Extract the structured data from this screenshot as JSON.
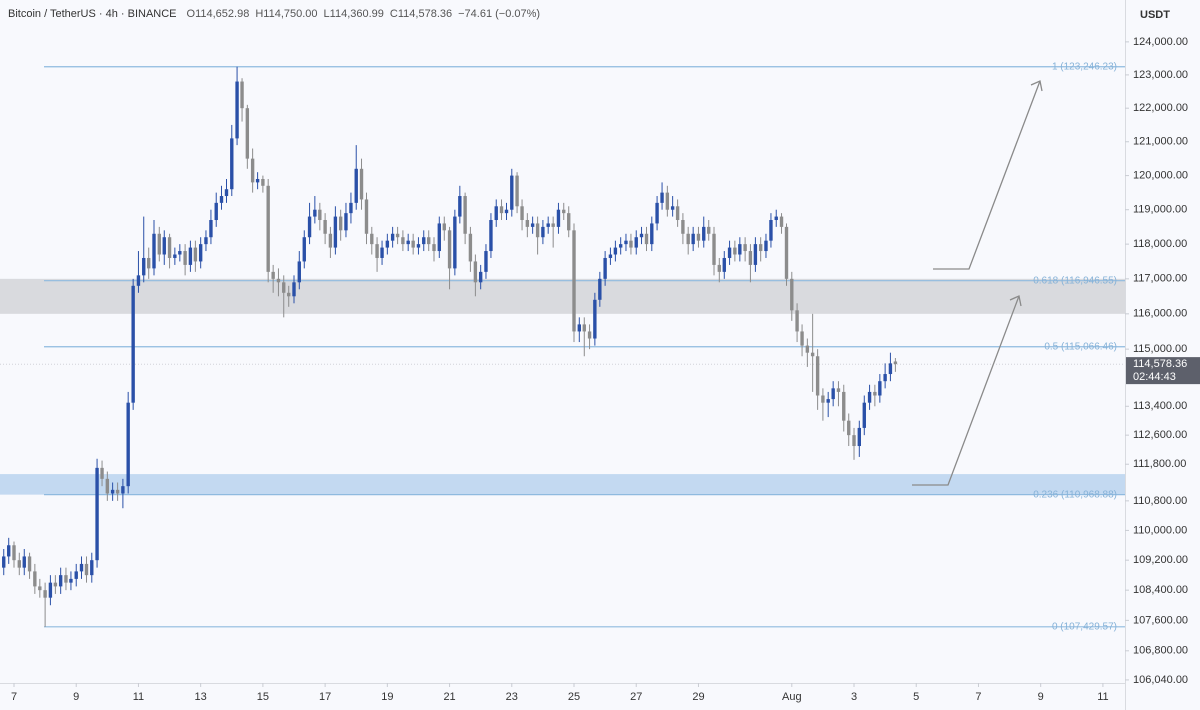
{
  "header": {
    "symbol": "Bitcoin / TetherUS · 4h · BINANCE",
    "ohlc": [
      {
        "key": "O",
        "value": "114,652.98"
      },
      {
        "key": "H",
        "value": "114,750.00"
      },
      {
        "key": "L",
        "value": "114,360.99"
      },
      {
        "key": "C",
        "value": "114,578.36"
      }
    ],
    "change": "−74.61 (−0.07%)"
  },
  "chart_data": {
    "type": "candlestick",
    "y_unit": "USDT",
    "log": true,
    "grid": false,
    "up_color": "#2a50a8",
    "down_color": "#8c8c8c",
    "xlim": [
      6.55,
      42.71
    ],
    "ylim": [
      105960,
      125280
    ],
    "xticks": [
      7,
      9,
      11,
      13,
      15,
      17,
      19,
      21,
      23,
      25,
      27,
      29,
      {
        "value": 32,
        "label": "Aug"
      },
      {
        "value": 34,
        "label": "3"
      },
      {
        "value": 36,
        "label": "5"
      },
      {
        "value": 38,
        "label": "7"
      },
      {
        "value": 40,
        "label": "9"
      },
      {
        "value": 42,
        "label": "11"
      }
    ],
    "yticks": [
      {
        "value": 124000,
        "label": "124,000.00"
      },
      {
        "value": 123000,
        "label": "123,000.00"
      },
      {
        "value": 122000,
        "label": "122,000.00"
      },
      {
        "value": 121000,
        "label": "121,000.00"
      },
      {
        "value": 120000,
        "label": "120,000.00"
      },
      {
        "value": 119000,
        "label": "119,000.00"
      },
      {
        "value": 118000,
        "label": "118,000.00"
      },
      {
        "value": 117000,
        "label": "117,000.00"
      },
      {
        "value": 116000,
        "label": "116,000.00"
      },
      {
        "value": 115000,
        "label": "115,000.00"
      },
      {
        "value": 113400,
        "label": "113,400.00"
      },
      {
        "value": 112600,
        "label": "112,600.00"
      },
      {
        "value": 111800,
        "label": "111,800.00"
      },
      {
        "value": 110800,
        "label": "110,800.00"
      },
      {
        "value": 110000,
        "label": "110,000.00"
      },
      {
        "value": 109200,
        "label": "109,200.00"
      },
      {
        "value": 108400,
        "label": "108,400.00"
      },
      {
        "value": 107600,
        "label": "107,600.00"
      },
      {
        "value": 106800,
        "label": "106,800.00"
      },
      {
        "value": 106040,
        "label": "106,040.00"
      }
    ],
    "last_price": {
      "value": 114578.36,
      "label": "114,578.36",
      "countdown": "02:44:43",
      "color": "#5d606b"
    },
    "zones": [
      {
        "low": 116000,
        "high": 117000,
        "color": "#d5d6da"
      },
      {
        "low": 110969,
        "high": 111530,
        "color": "#bcd5ef"
      }
    ],
    "fib_color": "#8fbadf",
    "fib_levels": [
      {
        "value": 123246.23,
        "label": "1 (123,246.23)"
      },
      {
        "value": 116946.55,
        "label": "0.618 (116,946.55)"
      },
      {
        "value": 115066.46,
        "label": "0.5 (115,066.46)"
      },
      {
        "value": 110968.88,
        "label": "0.236 (110,968.88)"
      },
      {
        "value": 107429.57,
        "label": "0 (107,429.57)"
      }
    ],
    "x": [
      6.67,
      6.83,
      7,
      7.17,
      7.33,
      7.5,
      7.67,
      7.83,
      8,
      8.17,
      8.33,
      8.5,
      8.67,
      8.83,
      9,
      9.17,
      9.33,
      9.5,
      9.67,
      9.83,
      10,
      10.17,
      10.33,
      10.5,
      10.67,
      10.83,
      11,
      11.17,
      11.33,
      11.5,
      11.67,
      11.83,
      12,
      12.17,
      12.33,
      12.5,
      12.67,
      12.83,
      13,
      13.17,
      13.33,
      13.5,
      13.67,
      13.83,
      14,
      14.17,
      14.33,
      14.5,
      14.67,
      14.83,
      15,
      15.17,
      15.33,
      15.5,
      15.67,
      15.83,
      16,
      16.17,
      16.33,
      16.5,
      16.67,
      16.83,
      17,
      17.17,
      17.33,
      17.5,
      17.67,
      17.83,
      18,
      18.17,
      18.33,
      18.5,
      18.67,
      18.83,
      19,
      19.17,
      19.33,
      19.5,
      19.67,
      19.83,
      20,
      20.17,
      20.33,
      20.5,
      20.67,
      20.83,
      21,
      21.17,
      21.33,
      21.5,
      21.67,
      21.83,
      22,
      22.17,
      22.33,
      22.5,
      22.67,
      22.83,
      23,
      23.17,
      23.33,
      23.5,
      23.67,
      23.83,
      24,
      24.17,
      24.33,
      24.5,
      24.67,
      24.83,
      25,
      25.17,
      25.33,
      25.5,
      25.67,
      25.83,
      26,
      26.17,
      26.33,
      26.5,
      26.67,
      26.83,
      27,
      27.17,
      27.33,
      27.5,
      27.67,
      27.83,
      28,
      28.17,
      28.33,
      28.5,
      28.67,
      28.83,
      29,
      29.17,
      29.33,
      29.5,
      29.67,
      29.83,
      30,
      30.17,
      30.33,
      30.5,
      30.67,
      30.83,
      31,
      31.17,
      31.33,
      31.5,
      31.67,
      31.83,
      32,
      32.17,
      32.33,
      32.5,
      32.67,
      32.83,
      33,
      33.17,
      33.33,
      33.5,
      33.67,
      33.83,
      34,
      34.17,
      34.33,
      34.5,
      34.67,
      34.83,
      35,
      35.17,
      35.33
    ],
    "open": [
      109000,
      109300,
      109600,
      109200,
      109000,
      109300,
      108900,
      108500,
      108400,
      108200,
      108600,
      108500,
      108800,
      108600,
      108700,
      108900,
      109100,
      108800,
      109200,
      111700,
      111400,
      111000,
      111100,
      111000,
      111200,
      113500,
      116800,
      117100,
      117600,
      117300,
      118300,
      117700,
      118200,
      117600,
      117700,
      117800,
      117400,
      117900,
      117500,
      118000,
      118200,
      118700,
      119200,
      119400,
      119600,
      121100,
      122800,
      122000,
      120500,
      119800,
      119900,
      119700,
      117200,
      117000,
      116900,
      116600,
      116500,
      116900,
      117500,
      118200,
      118800,
      119000,
      118700,
      118300,
      117900,
      118800,
      118400,
      118900,
      119200,
      120200,
      119300,
      118300,
      118000,
      117600,
      117900,
      118100,
      118300,
      118200,
      118000,
      118100,
      117900,
      118000,
      118200,
      118000,
      117800,
      118600,
      118400,
      117300,
      118800,
      119400,
      118300,
      117500,
      116900,
      117200,
      117800,
      118700,
      119100,
      118900,
      119000,
      120000,
      119100,
      118700,
      118500,
      118600,
      118200,
      118500,
      118600,
      118500,
      119000,
      118900,
      118400,
      115500,
      115700,
      115500,
      115300,
      116400,
      117000,
      117600,
      117700,
      117900,
      118000,
      118100,
      117900,
      118200,
      118300,
      118000,
      118600,
      119200,
      119500,
      119000,
      119100,
      118700,
      118300,
      118000,
      118300,
      118100,
      118500,
      118300,
      117400,
      117200,
      117600,
      117900,
      117700,
      118000,
      117800,
      117400,
      118000,
      117800,
      118100,
      118700,
      118800,
      118500,
      117000,
      116100,
      115500,
      115100,
      114900,
      114800,
      113700,
      113500,
      113600,
      113900,
      113800,
      113000,
      112600,
      112300,
      112800,
      113500,
      113800,
      113700,
      114100,
      114300,
      114652.98
    ],
    "high": [
      109500,
      109800,
      109700,
      109400,
      109500,
      109400,
      109100,
      108700,
      108600,
      108800,
      108800,
      109000,
      109000,
      108900,
      109100,
      109300,
      109300,
      109400,
      111950,
      111900,
      111600,
      111300,
      111300,
      111400,
      113800,
      117000,
      117800,
      118800,
      117900,
      118700,
      118500,
      118400,
      118300,
      117900,
      118000,
      118000,
      118100,
      118100,
      118200,
      118400,
      119000,
      119500,
      119700,
      119900,
      121500,
      123246.23,
      122900,
      122100,
      120800,
      120100,
      120000,
      119900,
      117400,
      117300,
      117100,
      116800,
      117100,
      117800,
      118400,
      119200,
      119400,
      119200,
      118900,
      118500,
      119100,
      119000,
      119200,
      119500,
      120900,
      120500,
      119500,
      118500,
      118200,
      118100,
      118300,
      118500,
      118500,
      118400,
      118300,
      118300,
      118200,
      118400,
      118400,
      118200,
      118800,
      118800,
      118500,
      119000,
      119700,
      119500,
      118500,
      117700,
      117400,
      118000,
      118900,
      119300,
      119300,
      119200,
      120200,
      120100,
      119300,
      118900,
      118800,
      118800,
      118700,
      118800,
      118800,
      119200,
      119200,
      119100,
      118600,
      115900,
      115900,
      115700,
      116600,
      117200,
      117800,
      117900,
      118100,
      118200,
      118300,
      118300,
      118400,
      118500,
      118500,
      118800,
      119400,
      119800,
      119700,
      119400,
      119300,
      118900,
      118500,
      118500,
      118500,
      118800,
      118700,
      118500,
      117600,
      117800,
      118100,
      118100,
      118200,
      118200,
      118000,
      118200,
      118200,
      118300,
      118900,
      119000,
      118900,
      118600,
      117200,
      116300,
      115700,
      115300,
      116000,
      115000,
      113900,
      113800,
      114100,
      114100,
      114000,
      113200,
      112800,
      113000,
      113700,
      114000,
      114000,
      114300,
      114600,
      114900,
      114750
    ],
    "low": [
      108800,
      109100,
      109000,
      108800,
      108800,
      108700,
      108300,
      108200,
      107429.57,
      108000,
      108300,
      108300,
      108400,
      108400,
      108500,
      108700,
      108600,
      108600,
      109000,
      111200,
      110800,
      110800,
      110800,
      110600,
      111000,
      113300,
      116600,
      116900,
      117000,
      117100,
      117500,
      117400,
      117300,
      117400,
      117500,
      117100,
      117200,
      117200,
      117300,
      117800,
      118000,
      118500,
      119000,
      119200,
      119400,
      120900,
      121600,
      120200,
      119500,
      119600,
      119500,
      116900,
      116600,
      116500,
      115900,
      116200,
      116300,
      116700,
      117300,
      118000,
      118600,
      118400,
      118000,
      117600,
      117700,
      118100,
      118200,
      118600,
      119000,
      119000,
      118000,
      117700,
      117200,
      117400,
      117700,
      117900,
      118000,
      117800,
      117800,
      117700,
      117700,
      117800,
      117800,
      117500,
      117600,
      118100,
      116700,
      117100,
      118600,
      118000,
      117200,
      116500,
      116700,
      117000,
      117600,
      118500,
      118700,
      118700,
      118800,
      118900,
      118400,
      118200,
      118300,
      117700,
      118000,
      118300,
      117900,
      118300,
      118700,
      118200,
      115200,
      115200,
      114800,
      115000,
      115100,
      116200,
      116800,
      117400,
      117500,
      117700,
      117800,
      117700,
      117700,
      118000,
      117800,
      117800,
      118400,
      119000,
      118800,
      118800,
      118500,
      118000,
      117700,
      117800,
      117900,
      117900,
      118100,
      117100,
      116900,
      117000,
      117400,
      117500,
      117500,
      117500,
      116900,
      117200,
      117500,
      117600,
      117900,
      118500,
      118300,
      116800,
      115800,
      115200,
      114800,
      114500,
      113800,
      113300,
      113000,
      113100,
      113400,
      113400,
      112700,
      112300,
      111920,
      112000,
      112600,
      113300,
      113400,
      113500,
      113900,
      114100,
      114360.99
    ],
    "close": [
      109300,
      109600,
      109200,
      109000,
      109300,
      108900,
      108500,
      108400,
      108200,
      108600,
      108500,
      108800,
      108600,
      108700,
      108900,
      109100,
      108800,
      109200,
      111700,
      111400,
      111000,
      111100,
      111000,
      111200,
      113500,
      116800,
      117100,
      117600,
      117300,
      118300,
      117700,
      118200,
      117600,
      117700,
      117800,
      117400,
      117900,
      117500,
      118000,
      118200,
      118700,
      119200,
      119400,
      119600,
      121100,
      122800,
      122000,
      120500,
      119800,
      119900,
      119700,
      117200,
      117000,
      116900,
      116600,
      116500,
      116900,
      117500,
      118200,
      118800,
      119000,
      118700,
      118300,
      117900,
      118800,
      118400,
      118900,
      119200,
      120200,
      119300,
      118300,
      118000,
      117600,
      117900,
      118100,
      118300,
      118200,
      118000,
      118100,
      117900,
      118000,
      118200,
      118000,
      117800,
      118600,
      118400,
      117300,
      118800,
      119400,
      118300,
      117500,
      116900,
      117200,
      117800,
      118700,
      119100,
      118900,
      119000,
      120000,
      119100,
      118700,
      118500,
      118600,
      118200,
      118500,
      118600,
      118500,
      119000,
      118900,
      118400,
      115500,
      115700,
      115500,
      115300,
      116400,
      117000,
      117600,
      117700,
      117900,
      118000,
      118100,
      117900,
      118200,
      118300,
      118000,
      118600,
      119200,
      119500,
      119000,
      119100,
      118700,
      118300,
      118000,
      118300,
      118100,
      118500,
      118300,
      117400,
      117200,
      117600,
      117900,
      117700,
      118000,
      117800,
      117400,
      118000,
      117800,
      118100,
      118700,
      118800,
      118500,
      117000,
      116100,
      115500,
      115100,
      114900,
      114800,
      113700,
      113500,
      113600,
      113900,
      113800,
      113000,
      112600,
      112300,
      112800,
      113500,
      113800,
      113700,
      114100,
      114300,
      114600,
      114578.36
    ]
  }
}
